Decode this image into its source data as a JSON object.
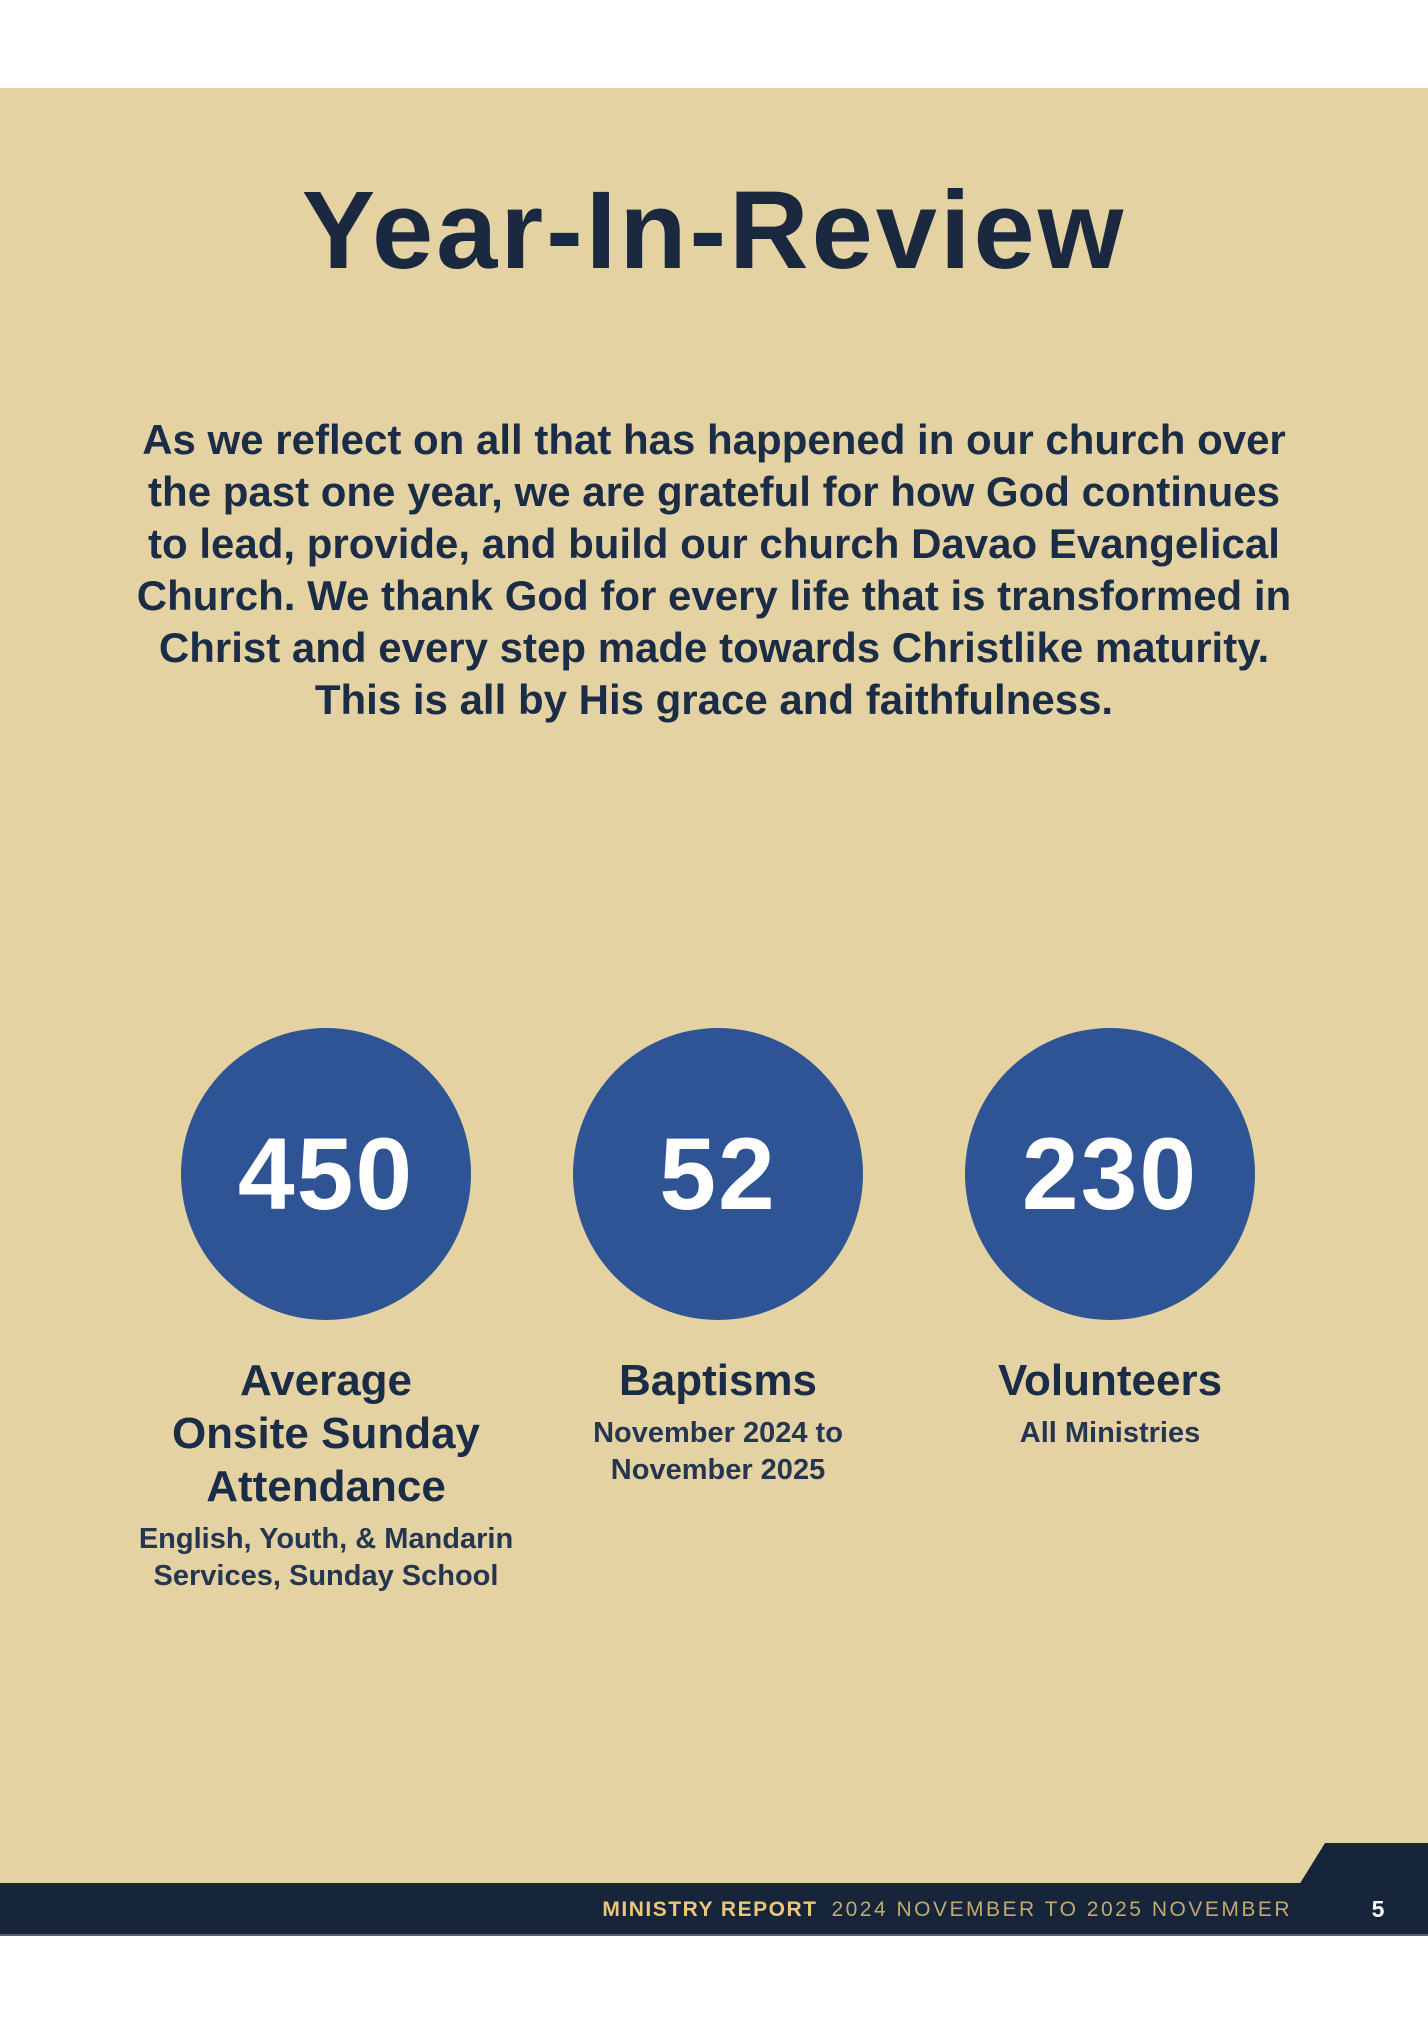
{
  "page": {
    "title": "Year-In-Review",
    "intro": "As we reflect on all that has happened in our church over\nthe past one year, we are grateful for how God continues\nto lead, provide, and build our church Davao Evangelical\nChurch. We thank God for every life that is transformed in\nChrist and every step made towards Christlike maturity.\nThis is all by His grace and faithfulness."
  },
  "stats": [
    {
      "value": "450",
      "label": "Average\nOnsite Sunday\nAttendance",
      "sublabel": "English, Youth, & Mandarin\nServices, Sunday School"
    },
    {
      "value": "52",
      "label": "Baptisms",
      "sublabel": "November 2024 to\nNovember 2025"
    },
    {
      "value": "230",
      "label": "Volunteers",
      "sublabel": "All Ministries"
    }
  ],
  "footer": {
    "report_title": "MINISTRY REPORT",
    "report_period": "2024 NOVEMBER TO 2025 NOVEMBER",
    "page_number": "5"
  },
  "colors": {
    "page_background": "#ffffff",
    "panel_tan": "#e5d2a3",
    "circle_blue": "#2f5496",
    "text_navy": "#1a2c46",
    "footer_navy": "#16253a",
    "footer_gold": "#eec679",
    "footer_muted_gold": "#c3a96e",
    "page_number_white": "#ffffff"
  }
}
